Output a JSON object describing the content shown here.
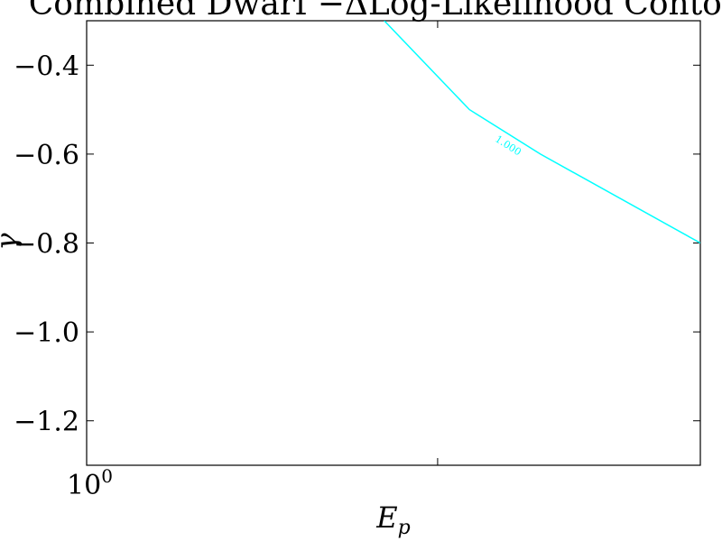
{
  "chart_data": {
    "type": "line",
    "title": "Combined Dwarf −ΔLog-Likelihood Contour",
    "xlabel": "E",
    "xlabel_sub": "p",
    "ylabel": "γ",
    "x_scale": "log",
    "xlim": [
      1,
      3.36
    ],
    "ylim": [
      -1.3,
      -0.3
    ],
    "x_ticks": [
      {
        "value": 1,
        "base": "10",
        "exp": "0"
      },
      {
        "value": 2.0,
        "base": "",
        "exp": ""
      }
    ],
    "y_ticks": [
      -0.4,
      -0.6,
      -0.8,
      -1.0,
      -1.2
    ],
    "y_tick_labels": [
      "−0.4",
      "−0.6",
      "−0.8",
      "−1.0",
      "−1.2"
    ],
    "grid": false,
    "contour": {
      "level_label": "1.000",
      "color": "#00ffff",
      "x": [
        1.8,
        2.13,
        2.45,
        3.36
      ],
      "y": [
        -0.3,
        -0.5,
        -0.6,
        -0.8
      ],
      "label_at": {
        "x": 2.3,
        "y": -0.58
      }
    }
  }
}
